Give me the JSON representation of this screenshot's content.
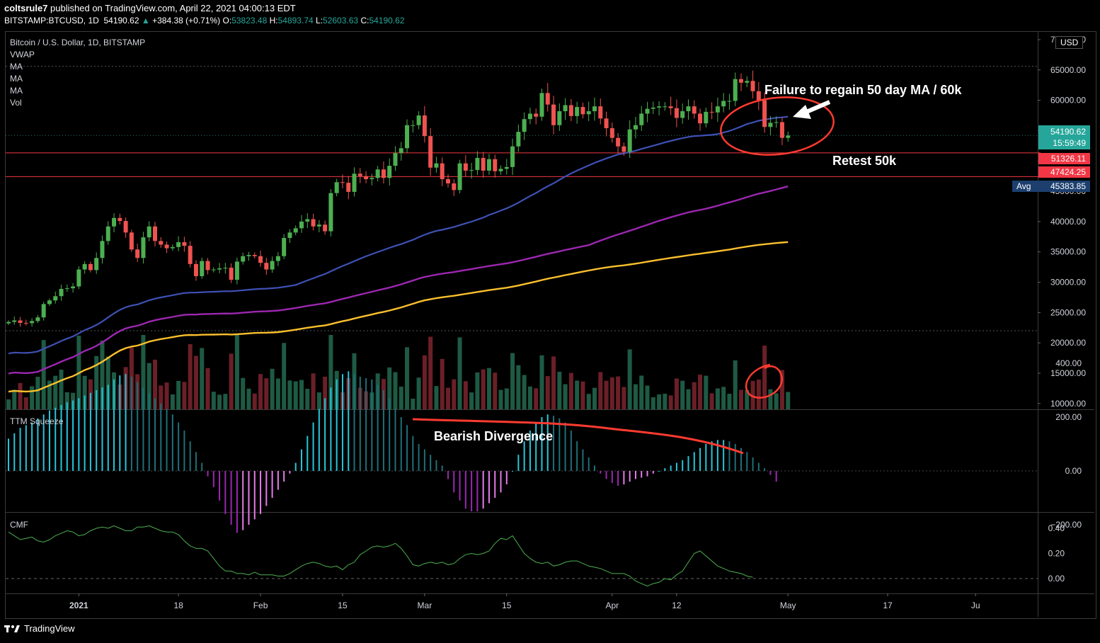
{
  "header": {
    "publisher": "coltsrule7",
    "published_text": "published on TradingView.com, April 22, 2021 04:00:13 EDT",
    "symbol": "BITSTAMP:BTCUSD, 1D",
    "last": "54190.62",
    "change": "+384.38 (+0.71%)",
    "o_label": "O:",
    "o": "53823.48",
    "h_label": "H:",
    "h": "54893.74",
    "l_label": "L:",
    "l": "52603.63",
    "c_label": "C:",
    "c": "54190.62"
  },
  "legend": {
    "title": "Bitcoin / U.S. Dollar, 1D, BITSTAMP",
    "items": [
      "VWAP",
      "MA",
      "MA",
      "MA",
      "Vol"
    ]
  },
  "panes": {
    "ttm": "TTM Squeeze",
    "cmf": "CMF"
  },
  "currency": "USD",
  "price_axis": {
    "ticks": [
      "70000.00",
      "65000.00",
      "60000.00",
      "55000.00",
      "50000.00",
      "45000.00",
      "40000.00",
      "35000.00",
      "30000.00",
      "25000.00",
      "20000.00",
      "15000.00",
      "10000.00"
    ],
    "last_price": "54190.62",
    "countdown": "15:59:49",
    "level_1": "51326.11",
    "level_2": "47424.25",
    "avg_label": "Avg",
    "avg_value": "45383.85"
  },
  "ttm_axis": [
    "400.00",
    "200.00",
    "0.00",
    "−200.00"
  ],
  "cmf_axis": [
    "0.40",
    "0.20",
    "0.00"
  ],
  "time_axis": [
    "2021",
    "18",
    "Feb",
    "15",
    "Mar",
    "15",
    "Apr",
    "12",
    "May",
    "17",
    "Ju"
  ],
  "annotations": {
    "failure": "Failure to regain 50 day MA / 60k",
    "retest": "Retest 50k",
    "divergence": "Bearish Divergence"
  },
  "footer": {
    "brand": "TradingView"
  },
  "colors": {
    "up": "#26a69a",
    "candle_up": "#4caf50",
    "candle_down": "#ef5350",
    "ma50": "#3f51b5",
    "ma100": "#9c27b0",
    "ma200": "#fbc02d",
    "annotation": "#ff3b30",
    "cmf": "#4caf50"
  },
  "chart_data": [
    {
      "type": "candlestick",
      "title": "Bitcoin / U.S. Dollar, 1D, BITSTAMP",
      "x_start": "2020-12-20",
      "x_end": "2021-04-22",
      "ylim": [
        7000,
        71000
      ],
      "close": [
        23450,
        23700,
        23300,
        23250,
        23600,
        24200,
        26400,
        27000,
        27700,
        28900,
        29000,
        29300,
        32100,
        33000,
        32000,
        34000,
        36800,
        39200,
        40600,
        40100,
        38200,
        35400,
        34000,
        37400,
        39200,
        36800,
        36200,
        35600,
        35800,
        36600,
        36000,
        33000,
        31000,
        33500,
        32000,
        32100,
        32300,
        32400,
        30400,
        33400,
        34300,
        34500,
        34300,
        33200,
        32100,
        33500,
        34300,
        37300,
        38200,
        38900,
        40000,
        40400,
        39200,
        39500,
        38400,
        44700,
        46500,
        46400,
        44900,
        47900,
        47500,
        47000,
        47200,
        48600,
        47200,
        49200,
        51300,
        52100,
        55900,
        55900,
        57500,
        54100,
        48900,
        49600,
        47000,
        46300,
        45200,
        49600,
        48400,
        48500,
        50500,
        48400,
        50300,
        48300,
        48700,
        49000,
        52400,
        54800,
        56900,
        57800,
        57300,
        61200,
        59300,
        55900,
        58200,
        59200,
        57400,
        58900,
        57700,
        58200,
        59000,
        57000,
        55400,
        53800,
        52400,
        51500,
        55200,
        55900,
        57800,
        58600,
        58800,
        59000,
        59000,
        58700,
        57100,
        58200,
        59000,
        57800,
        56200,
        58100,
        58000,
        59000,
        59900,
        59900,
        63500,
        62900,
        63200,
        61500,
        60000,
        55600,
        56300,
        56400,
        53800,
        54190
      ]
    },
    {
      "type": "line",
      "title": "TTM Squeeze",
      "x_start": "2020-12-20",
      "x_end": "2021-04-22",
      "ylim": [
        -300,
        400
      ],
      "values": [
        120,
        140,
        160,
        170,
        180,
        195,
        210,
        225,
        235,
        245,
        255,
        262,
        270,
        280,
        290,
        300,
        310,
        320,
        340,
        355,
        360,
        350,
        330,
        310,
        290,
        270,
        250,
        230,
        210,
        180,
        150,
        110,
        70,
        30,
        -20,
        -60,
        -110,
        -160,
        -200,
        -230,
        -220,
        -200,
        -180,
        -160,
        -130,
        -100,
        -70,
        -40,
        -10,
        30,
        80,
        130,
        180,
        230,
        270,
        310,
        340,
        360,
        370,
        360,
        350,
        345,
        340,
        320,
        300,
        270,
        230,
        200,
        170,
        130,
        100,
        80,
        60,
        40,
        20,
        -30,
        -80,
        -110,
        -140,
        -150,
        -150,
        -140,
        -120,
        -100,
        -80,
        -50,
        0,
        60,
        110,
        150,
        180,
        200,
        210,
        205,
        195,
        180,
        150,
        110,
        80,
        50,
        20,
        -10,
        -30,
        -45,
        -55,
        -50,
        -40,
        -30,
        -25,
        -20,
        -10,
        0,
        10,
        20,
        30,
        40,
        55,
        70,
        85,
        100,
        110,
        115,
        115,
        110,
        100,
        85,
        70,
        50,
        30,
        10,
        -15,
        -40
      ]
    },
    {
      "type": "line",
      "title": "CMF",
      "x_start": "2020-12-20",
      "x_end": "2021-04-22",
      "ylim": [
        -0.1,
        0.45
      ],
      "values": [
        0.37,
        0.34,
        0.31,
        0.32,
        0.33,
        0.3,
        0.29,
        0.31,
        0.34,
        0.36,
        0.38,
        0.37,
        0.34,
        0.35,
        0.38,
        0.4,
        0.41,
        0.4,
        0.42,
        0.4,
        0.38,
        0.38,
        0.41,
        0.41,
        0.42,
        0.4,
        0.38,
        0.37,
        0.37,
        0.35,
        0.3,
        0.26,
        0.24,
        0.24,
        0.22,
        0.16,
        0.1,
        0.06,
        0.06,
        0.04,
        0.04,
        0.03,
        0.05,
        0.03,
        0.03,
        0.03,
        0.02,
        0.02,
        0.04,
        0.07,
        0.1,
        0.12,
        0.13,
        0.12,
        0.1,
        0.09,
        0.1,
        0.07,
        0.11,
        0.13,
        0.19,
        0.22,
        0.25,
        0.26,
        0.25,
        0.26,
        0.28,
        0.24,
        0.18,
        0.11,
        0.1,
        0.12,
        0.13,
        0.12,
        0.13,
        0.11,
        0.12,
        0.16,
        0.19,
        0.2,
        0.19,
        0.2,
        0.22,
        0.28,
        0.32,
        0.31,
        0.34,
        0.27,
        0.2,
        0.16,
        0.13,
        0.12,
        0.13,
        0.1,
        0.11,
        0.13,
        0.14,
        0.14,
        0.12,
        0.1,
        0.09,
        0.08,
        0.06,
        0.04,
        0.04,
        0.04,
        0.02,
        -0.02,
        -0.04,
        -0.06,
        -0.04,
        -0.03,
        0.0,
        -0.01,
        0.03,
        0.06,
        0.13,
        0.2,
        0.22,
        0.18,
        0.14,
        0.1,
        0.08,
        0.06,
        0.05,
        0.04,
        0.02,
        0.01
      ]
    }
  ]
}
